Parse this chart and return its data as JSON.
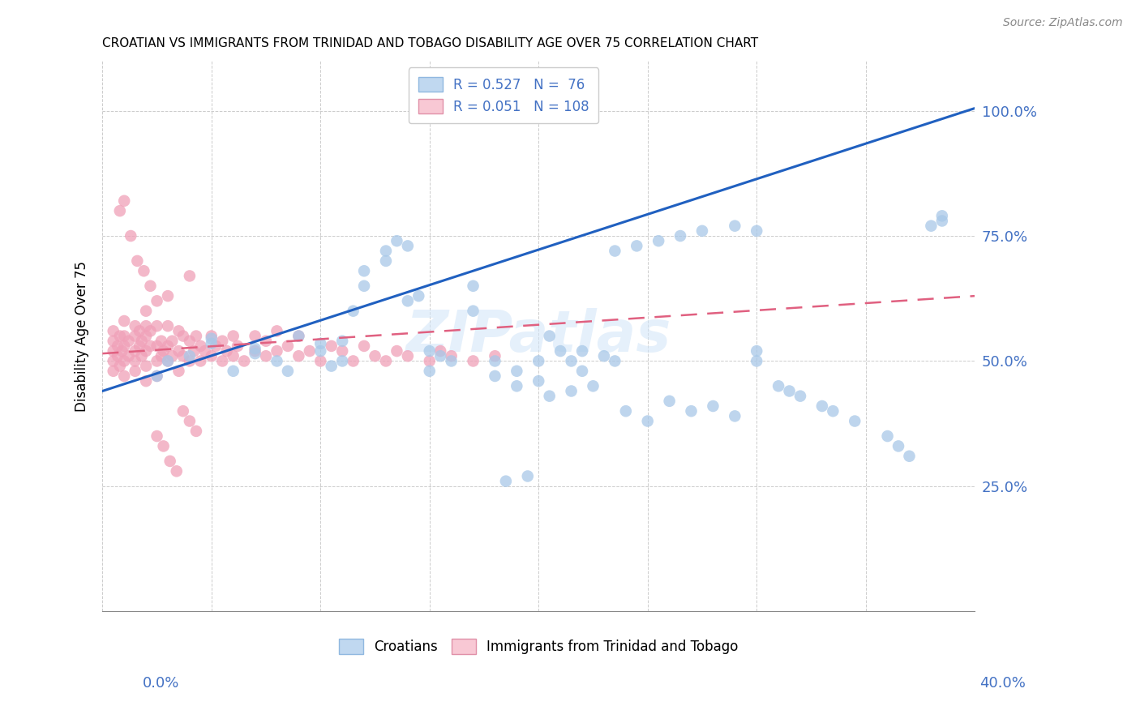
{
  "title": "CROATIAN VS IMMIGRANTS FROM TRINIDAD AND TOBAGO DISABILITY AGE OVER 75 CORRELATION CHART",
  "source": "Source: ZipAtlas.com",
  "ylabel": "Disability Age Over 75",
  "blue_R": 0.527,
  "blue_N": 76,
  "pink_R": 0.051,
  "pink_N": 108,
  "blue_color": "#A8C8E8",
  "pink_color": "#F0A0B8",
  "blue_line_color": "#2060C0",
  "pink_line_color": "#E06080",
  "watermark": "ZIPatlas",
  "legend_box_blue": "#C0D8F0",
  "legend_box_pink": "#F8C8D4",
  "xlim": [
    0.0,
    0.4
  ],
  "ylim": [
    0.0,
    1.1
  ],
  "blue_line": [
    0.0,
    0.44,
    0.4,
    1.005
  ],
  "pink_line": [
    0.0,
    0.515,
    0.4,
    0.63
  ],
  "ytick_vals": [
    0.25,
    0.5,
    0.75,
    1.0
  ],
  "ytick_labels": [
    "25.0%",
    "50.0%",
    "75.0%",
    "100.0%"
  ],
  "xtick_vals": [
    0.0,
    0.05,
    0.1,
    0.15,
    0.2,
    0.25,
    0.3,
    0.35,
    0.4
  ],
  "blue_x": [
    0.025,
    0.03,
    0.04,
    0.05,
    0.05,
    0.06,
    0.07,
    0.07,
    0.08,
    0.085,
    0.09,
    0.1,
    0.1,
    0.105,
    0.11,
    0.11,
    0.115,
    0.12,
    0.12,
    0.13,
    0.13,
    0.135,
    0.14,
    0.14,
    0.145,
    0.15,
    0.15,
    0.155,
    0.16,
    0.17,
    0.17,
    0.18,
    0.18,
    0.19,
    0.19,
    0.2,
    0.2,
    0.205,
    0.21,
    0.215,
    0.22,
    0.22,
    0.23,
    0.235,
    0.24,
    0.25,
    0.26,
    0.27,
    0.28,
    0.29,
    0.3,
    0.3,
    0.31,
    0.315,
    0.32,
    0.33,
    0.335,
    0.345,
    0.36,
    0.365,
    0.37,
    0.38,
    0.385,
    0.385,
    0.3,
    0.29,
    0.275,
    0.265,
    0.255,
    0.245,
    0.235,
    0.225,
    0.215,
    0.205,
    0.195,
    0.185
  ],
  "blue_y": [
    0.47,
    0.5,
    0.51,
    0.535,
    0.545,
    0.48,
    0.515,
    0.525,
    0.5,
    0.48,
    0.55,
    0.52,
    0.535,
    0.49,
    0.5,
    0.54,
    0.6,
    0.65,
    0.68,
    0.7,
    0.72,
    0.74,
    0.73,
    0.62,
    0.63,
    0.48,
    0.52,
    0.51,
    0.5,
    0.6,
    0.65,
    0.47,
    0.5,
    0.45,
    0.48,
    0.46,
    0.5,
    0.55,
    0.52,
    0.5,
    0.48,
    0.52,
    0.51,
    0.5,
    0.4,
    0.38,
    0.42,
    0.4,
    0.41,
    0.39,
    0.5,
    0.52,
    0.45,
    0.44,
    0.43,
    0.41,
    0.4,
    0.38,
    0.35,
    0.33,
    0.31,
    0.77,
    0.79,
    0.78,
    0.76,
    0.77,
    0.76,
    0.75,
    0.74,
    0.73,
    0.72,
    0.45,
    0.44,
    0.43,
    0.27,
    0.26
  ],
  "pink_x": [
    0.005,
    0.005,
    0.005,
    0.005,
    0.005,
    0.007,
    0.007,
    0.008,
    0.008,
    0.009,
    0.01,
    0.01,
    0.01,
    0.01,
    0.01,
    0.012,
    0.012,
    0.015,
    0.015,
    0.015,
    0.015,
    0.015,
    0.017,
    0.017,
    0.018,
    0.018,
    0.02,
    0.02,
    0.02,
    0.02,
    0.02,
    0.02,
    0.022,
    0.022,
    0.025,
    0.025,
    0.025,
    0.025,
    0.025,
    0.027,
    0.027,
    0.028,
    0.03,
    0.03,
    0.03,
    0.03,
    0.032,
    0.032,
    0.035,
    0.035,
    0.035,
    0.037,
    0.037,
    0.04,
    0.04,
    0.04,
    0.042,
    0.043,
    0.045,
    0.045,
    0.047,
    0.05,
    0.05,
    0.052,
    0.055,
    0.055,
    0.057,
    0.06,
    0.06,
    0.062,
    0.065,
    0.07,
    0.07,
    0.075,
    0.075,
    0.08,
    0.08,
    0.085,
    0.09,
    0.09,
    0.095,
    0.1,
    0.105,
    0.11,
    0.115,
    0.12,
    0.125,
    0.13,
    0.135,
    0.14,
    0.15,
    0.155,
    0.16,
    0.17,
    0.18,
    0.008,
    0.01,
    0.013,
    0.016,
    0.019,
    0.022,
    0.025,
    0.028,
    0.031,
    0.034,
    0.037,
    0.04,
    0.043
  ],
  "pink_y": [
    0.5,
    0.52,
    0.54,
    0.56,
    0.48,
    0.51,
    0.53,
    0.49,
    0.55,
    0.52,
    0.5,
    0.53,
    0.55,
    0.47,
    0.58,
    0.51,
    0.54,
    0.52,
    0.55,
    0.57,
    0.48,
    0.5,
    0.53,
    0.56,
    0.51,
    0.54,
    0.52,
    0.55,
    0.57,
    0.49,
    0.6,
    0.46,
    0.53,
    0.56,
    0.5,
    0.53,
    0.57,
    0.47,
    0.62,
    0.51,
    0.54,
    0.52,
    0.5,
    0.53,
    0.57,
    0.63,
    0.51,
    0.54,
    0.52,
    0.56,
    0.48,
    0.51,
    0.55,
    0.5,
    0.54,
    0.67,
    0.52,
    0.55,
    0.5,
    0.53,
    0.52,
    0.51,
    0.55,
    0.53,
    0.5,
    0.54,
    0.52,
    0.51,
    0.55,
    0.53,
    0.5,
    0.52,
    0.55,
    0.51,
    0.54,
    0.52,
    0.56,
    0.53,
    0.51,
    0.55,
    0.52,
    0.5,
    0.53,
    0.52,
    0.5,
    0.53,
    0.51,
    0.5,
    0.52,
    0.51,
    0.5,
    0.52,
    0.51,
    0.5,
    0.51,
    0.8,
    0.82,
    0.75,
    0.7,
    0.68,
    0.65,
    0.35,
    0.33,
    0.3,
    0.28,
    0.4,
    0.38,
    0.36
  ]
}
